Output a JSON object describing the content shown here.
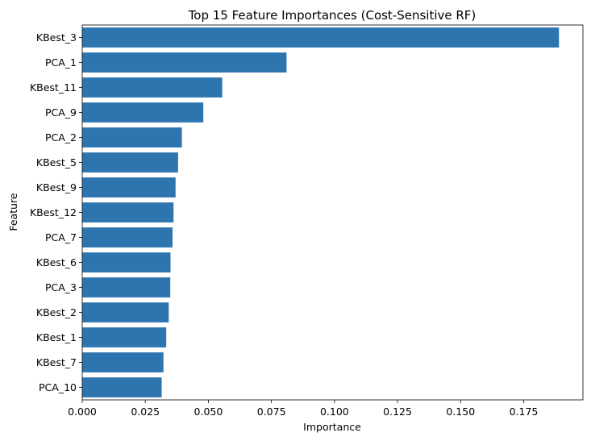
{
  "chart_data": {
    "type": "bar",
    "orientation": "horizontal",
    "title": "Top 15 Feature Importances (Cost-Sensitive RF)",
    "xlabel": "Importance",
    "ylabel": "Feature",
    "categories": [
      "KBest_3",
      "PCA_1",
      "KBest_11",
      "PCA_9",
      "PCA_2",
      "KBest_5",
      "KBest_9",
      "KBest_12",
      "PCA_7",
      "KBest_6",
      "PCA_3",
      "KBest_2",
      "KBest_1",
      "KBest_7",
      "PCA_10"
    ],
    "values": [
      0.189,
      0.081,
      0.0555,
      0.048,
      0.0395,
      0.038,
      0.037,
      0.0362,
      0.0358,
      0.035,
      0.0349,
      0.0343,
      0.0333,
      0.0322,
      0.0315
    ],
    "xlim": [
      0,
      0.1985
    ],
    "xticks": [
      "0.000",
      "0.025",
      "0.050",
      "0.075",
      "0.100",
      "0.125",
      "0.150",
      "0.175"
    ],
    "grid": false,
    "bar_color": "#2e75b0"
  }
}
